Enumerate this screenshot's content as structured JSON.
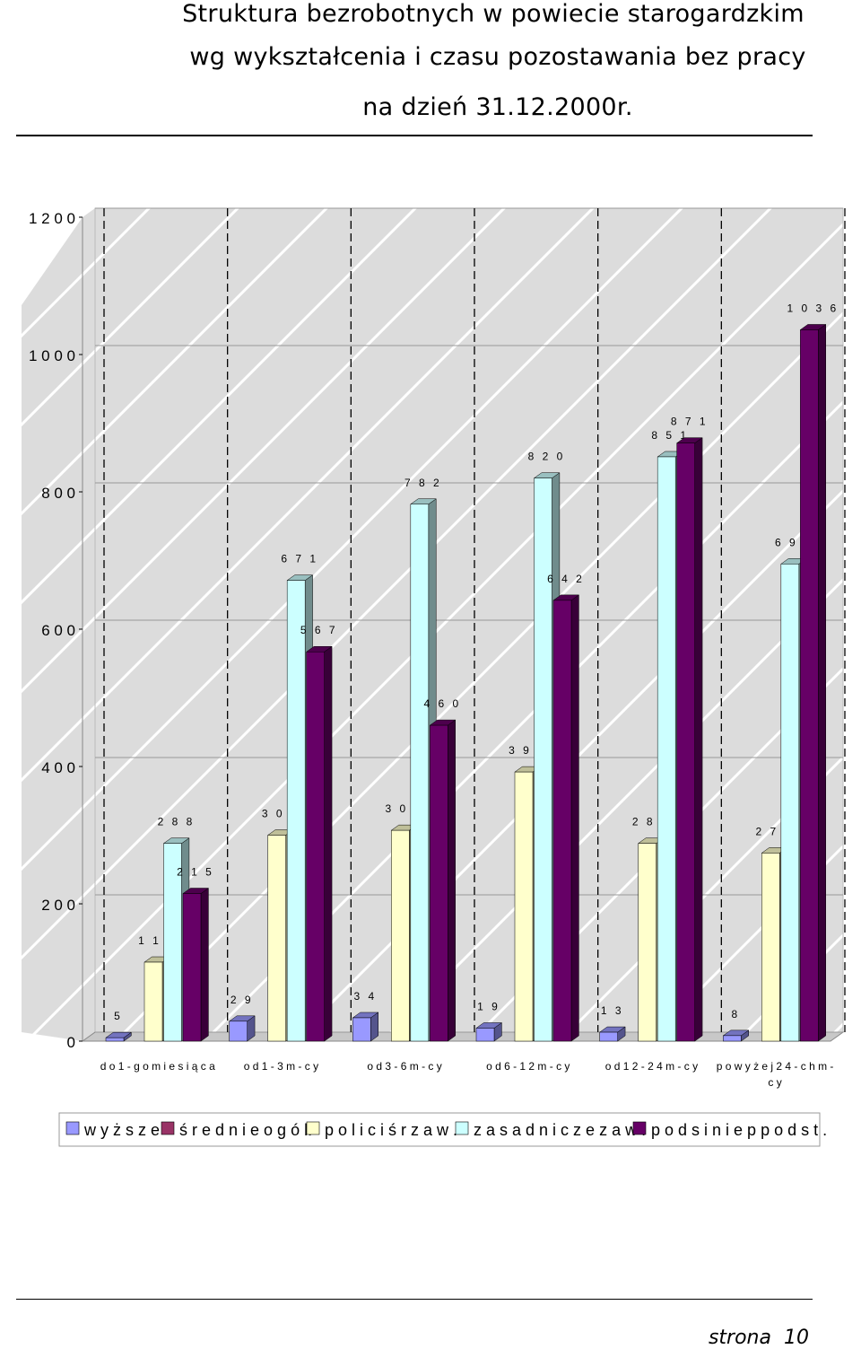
{
  "header": {
    "line1": "Struktura bezrobotnych w powiecie starogardzkim",
    "line2": "wg wykształcenia i czasu pozostawania bez pracy",
    "line3": "na dzień 31.12.2000r."
  },
  "footer": {
    "label": "strona",
    "page": "10"
  },
  "chart_data": {
    "type": "bar",
    "title": "",
    "xlabel": "",
    "ylabel": "",
    "ylim": [
      0,
      1200
    ],
    "yticks": [
      "0",
      "2 0 0",
      "4 0 0",
      "6 0 0",
      "8 0 0",
      "1 0 0 0",
      "1 2 0 0"
    ],
    "categories": [
      "d o  1 - g o  m i e s i ą c a",
      "o d  1 - 3  m - c y",
      "o d  3 - 6  m - c y",
      "o d  6 - 1 2  m - c y",
      "o d  1 2 - 2 4  m - c y",
      "p o w y ż e j  2 4 - c h  m - c y"
    ],
    "series": [
      {
        "name": "w y ż s z e",
        "color": "#9999ff",
        "values": [
          5,
          29,
          34,
          19,
          13,
          8
        ]
      },
      {
        "name": "ś r e d n i e  o g ó l.",
        "color": "#993366",
        "values": [
          null,
          null,
          null,
          null,
          null,
          null
        ]
      },
      {
        "name": "p o l i c  i  ś r  z a w .",
        "color": "#ffffcc",
        "values": [
          115,
          300,
          307,
          392,
          288,
          274
        ]
      },
      {
        "name": "z a s a d n i c z e  z a w .",
        "color": "#ccffff",
        "values": [
          288,
          671,
          782,
          820,
          851,
          695
        ]
      },
      {
        "name": "p o d s  i n i e p  p o d s t .",
        "color": "#660066",
        "values": [
          215,
          567,
          460,
          642,
          871,
          1036
        ]
      }
    ],
    "grid": true,
    "legend": "bottom"
  }
}
